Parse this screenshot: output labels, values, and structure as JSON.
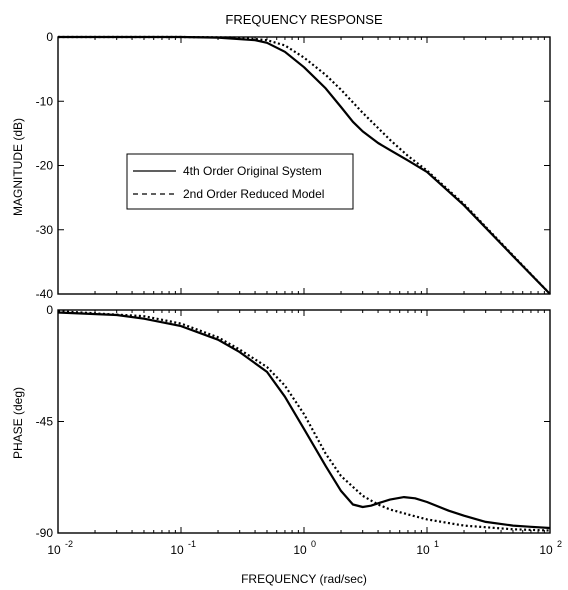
{
  "title": "FREQUENCY RESPONSE",
  "chart_data": [
    {
      "type": "line",
      "panel": "magnitude",
      "ylabel": "MAGNITUDE  (dB)",
      "xscale": "log",
      "xlim": [
        0.01,
        100
      ],
      "ylim": [
        -40,
        0
      ],
      "yticks": [
        0,
        -10,
        -20,
        -30,
        -40
      ],
      "ytick_labels": [
        "0",
        "-10",
        "-20",
        "-30",
        "-40"
      ],
      "legend": {
        "placement": "center-left",
        "entries": [
          "4th Order Original System",
          "2nd Order Reduced Model"
        ]
      },
      "series": [
        {
          "name": "4th Order Original System",
          "style": "solid",
          "points": [
            [
              0.01,
              0
            ],
            [
              0.1,
              0
            ],
            [
              0.2,
              -0.1
            ],
            [
              0.4,
              -0.5
            ],
            [
              0.5,
              -0.9
            ],
            [
              0.7,
              -2.3
            ],
            [
              1.0,
              -4.7
            ],
            [
              1.5,
              -8.0
            ],
            [
              2.0,
              -10.9
            ],
            [
              2.5,
              -13.2
            ],
            [
              3.0,
              -14.7
            ],
            [
              4.0,
              -16.5
            ],
            [
              5.0,
              -17.6
            ],
            [
              7.0,
              -19.2
            ],
            [
              10.0,
              -21.0
            ],
            [
              20.0,
              -26.2
            ],
            [
              50.0,
              -34.1
            ],
            [
              100.0,
              -40.0
            ]
          ]
        },
        {
          "name": "2nd Order Reduced Model",
          "style": "dotted",
          "points": [
            [
              0.01,
              0
            ],
            [
              0.1,
              0
            ],
            [
              0.3,
              -0.1
            ],
            [
              0.5,
              -0.5
            ],
            [
              0.7,
              -1.3
            ],
            [
              1.0,
              -3.2
            ],
            [
              1.5,
              -5.9
            ],
            [
              2.0,
              -8.2
            ],
            [
              3.0,
              -11.8
            ],
            [
              5.0,
              -16.0
            ],
            [
              7.0,
              -18.5
            ],
            [
              10.0,
              -20.8
            ],
            [
              20.0,
              -26.0
            ],
            [
              50.0,
              -34.0
            ],
            [
              100.0,
              -40.0
            ]
          ]
        }
      ]
    },
    {
      "type": "line",
      "panel": "phase",
      "ylabel": "PHASE  (deg)",
      "xlabel": "FREQUENCY  (rad/sec)",
      "xscale": "log",
      "xlim": [
        0.01,
        100
      ],
      "ylim": [
        -90,
        0
      ],
      "yticks": [
        0,
        -45,
        -90
      ],
      "ytick_labels": [
        "0",
        "-45",
        "-90"
      ],
      "xticks": [
        0.01,
        0.1,
        1,
        10,
        100
      ],
      "xtick_labels": [
        [
          "10",
          "-2"
        ],
        [
          "10",
          "-1"
        ],
        [
          "10",
          "0"
        ],
        [
          "10",
          "1"
        ],
        [
          "10",
          "2"
        ]
      ],
      "series": [
        {
          "name": "4th Order Original System",
          "style": "solid",
          "points": [
            [
              0.01,
              -1.0
            ],
            [
              0.03,
              -2.0
            ],
            [
              0.05,
              -3.5
            ],
            [
              0.1,
              -6.5
            ],
            [
              0.2,
              -12.0
            ],
            [
              0.3,
              -17.0
            ],
            [
              0.5,
              -25.0
            ],
            [
              0.7,
              -35.0
            ],
            [
              1.0,
              -48.0
            ],
            [
              1.5,
              -63.0
            ],
            [
              2.0,
              -73.0
            ],
            [
              2.5,
              -78.5
            ],
            [
              3.0,
              -79.5
            ],
            [
              3.5,
              -79.0
            ],
            [
              4.0,
              -78.0
            ],
            [
              5.0,
              -76.5
            ],
            [
              6.5,
              -75.5
            ],
            [
              8.0,
              -76.0
            ],
            [
              10.0,
              -77.5
            ],
            [
              15.0,
              -81.0
            ],
            [
              20.0,
              -83.0
            ],
            [
              30.0,
              -85.5
            ],
            [
              50.0,
              -87.0
            ],
            [
              70.0,
              -87.5
            ],
            [
              100.0,
              -88.0
            ]
          ]
        },
        {
          "name": "2nd Order Reduced Model",
          "style": "dotted",
          "points": [
            [
              0.01,
              -0.5
            ],
            [
              0.05,
              -2.5
            ],
            [
              0.1,
              -5.5
            ],
            [
              0.2,
              -11.0
            ],
            [
              0.3,
              -16.0
            ],
            [
              0.5,
              -23.0
            ],
            [
              0.7,
              -30.5
            ],
            [
              1.0,
              -42.0
            ],
            [
              1.5,
              -58.0
            ],
            [
              2.0,
              -67.0
            ],
            [
              3.0,
              -75.0
            ],
            [
              4.0,
              -78.5
            ],
            [
              5.0,
              -80.5
            ],
            [
              7.0,
              -82.5
            ],
            [
              10.0,
              -84.5
            ],
            [
              20.0,
              -87.0
            ],
            [
              50.0,
              -88.5
            ],
            [
              100.0,
              -89.0
            ]
          ]
        }
      ]
    }
  ]
}
